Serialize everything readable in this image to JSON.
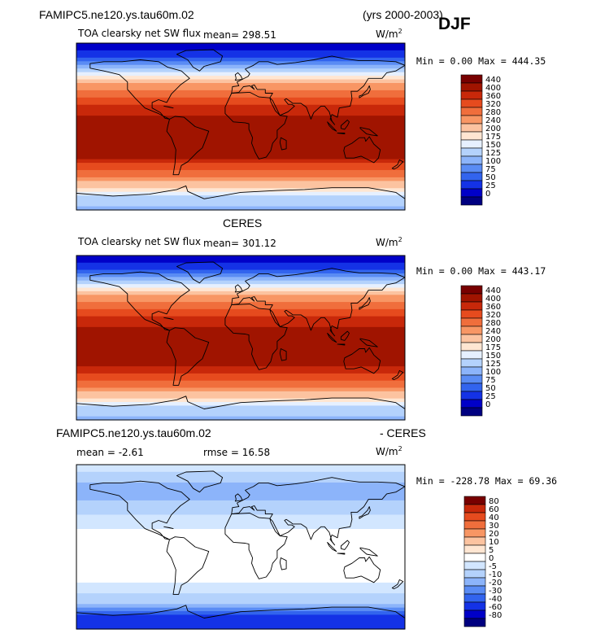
{
  "header": {
    "case_name": "FAMIPC5.ne120.ys.tau60m.02",
    "years": "(yrs 2000-2003)",
    "season": "DJF"
  },
  "colors": {
    "abs_scale": [
      "#000080",
      "#0000c8",
      "#1432e6",
      "#3264ee",
      "#5a8cf4",
      "#8cb4fa",
      "#b4d2fc",
      "#e6f0ff",
      "#ffe6d2",
      "#fcc3a0",
      "#f89664",
      "#f06e3c",
      "#e64b1e",
      "#c8280a",
      "#a01400",
      "#780000"
    ],
    "diff_scale": [
      "#000080",
      "#0000c8",
      "#1432e6",
      "#3264ee",
      "#5a8cf4",
      "#8cb4fa",
      "#b4d2fc",
      "#d2e6ff",
      "#ffffff",
      "#ffe6d2",
      "#fcc3a0",
      "#f89664",
      "#f06e3c",
      "#e64b1e",
      "#c8280a",
      "#780000"
    ],
    "coastline": "#000000"
  },
  "chart_data": [
    {
      "type": "heatmap",
      "panel": "model",
      "title": "TOA clearsky net SW flux",
      "mean_text": "mean= 298.51",
      "units_base": "W/m",
      "units_exp": "2",
      "minmax_text": "Min =   0.00 Max = 444.35",
      "colorbar_levels": [
        "440",
        "400",
        "360",
        "320",
        "280",
        "240",
        "200",
        "175",
        "150",
        "125",
        "100",
        "75",
        "50",
        "25",
        "0"
      ],
      "lat_profile": {
        "lat": [
          90,
          75,
          60,
          45,
          30,
          15,
          0,
          -15,
          -30,
          -45,
          -60,
          -75,
          -90
        ],
        "value": [
          0,
          40,
          150,
          250,
          330,
          390,
          420,
          440,
          420,
          330,
          240,
          140,
          120
        ]
      }
    },
    {
      "type": "heatmap",
      "panel": "obs",
      "label": "CERES",
      "title": "TOA clearsky net SW flux",
      "mean_text": "mean= 301.12",
      "units_base": "W/m",
      "units_exp": "2",
      "minmax_text": "Min =   0.00 Max = 443.17",
      "colorbar_levels": [
        "440",
        "400",
        "360",
        "320",
        "280",
        "240",
        "200",
        "175",
        "150",
        "125",
        "100",
        "75",
        "50",
        "25",
        "0"
      ],
      "lat_profile": {
        "lat": [
          90,
          75,
          60,
          45,
          30,
          15,
          0,
          -15,
          -30,
          -45,
          -60,
          -75,
          -90
        ],
        "value": [
          0,
          40,
          150,
          250,
          330,
          390,
          420,
          430,
          410,
          330,
          240,
          140,
          120
        ]
      }
    },
    {
      "type": "heatmap",
      "panel": "difference",
      "title_left": "FAMIPC5.ne120.ys.tau60m.02",
      "title_right": "- CERES",
      "mean_text": "mean =  -2.61",
      "rmse_text": "rmse =  16.58",
      "units_base": "W/m",
      "units_exp": "2",
      "minmax_text": "Min = -228.78 Max =  69.36",
      "colorbar_levels": [
        "80",
        "60",
        "40",
        "30",
        "20",
        "10",
        "5",
        "0",
        "-5",
        "-10",
        "-20",
        "-30",
        "-40",
        "-60",
        "-80"
      ],
      "lat_profile": {
        "lat": [
          90,
          75,
          60,
          45,
          30,
          15,
          0,
          -15,
          -30,
          -45,
          -60,
          -75,
          -90
        ],
        "value": [
          -3,
          -8,
          -15,
          -8,
          -3,
          2,
          3,
          3,
          2,
          -2,
          -8,
          -40,
          -60
        ]
      }
    }
  ]
}
